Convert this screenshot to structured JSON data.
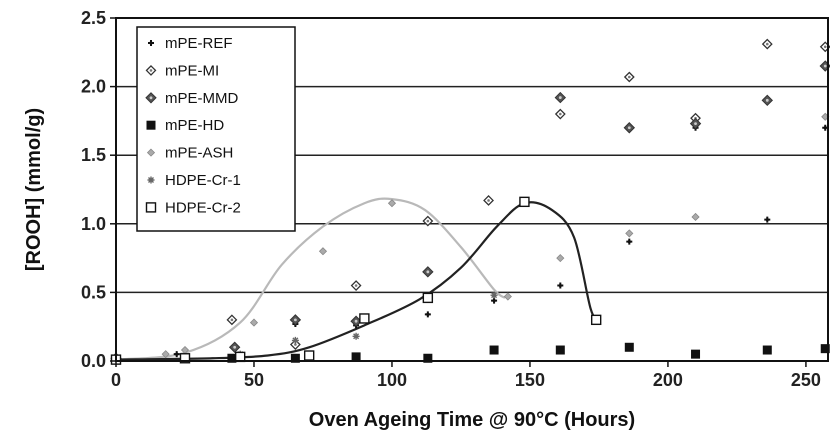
{
  "chart_data": {
    "type": "scatter",
    "title": "",
    "xlabel": "Oven Ageing Time @ 90°C (Hours)",
    "ylabel": "[ROOH] (mmol/g)",
    "xlim": [
      0,
      258
    ],
    "ylim": [
      0,
      2.5
    ],
    "xticks": [
      0,
      50,
      100,
      150,
      200,
      250
    ],
    "yticks": [
      0.0,
      0.5,
      1.0,
      1.5,
      2.0,
      2.5
    ],
    "ytick_labels": [
      "0.0",
      "0.5",
      "1.0",
      "1.5",
      "2.0",
      "2.5"
    ],
    "grid": "horizontal",
    "legend_position": "top-left",
    "series": [
      {
        "name": "mPE-REF",
        "marker": "small-plus",
        "points": [
          [
            0,
            0.02
          ],
          [
            22,
            0.05
          ],
          [
            45,
            0.03
          ],
          [
            65,
            0.27
          ],
          [
            87,
            0.26
          ],
          [
            113,
            0.34
          ],
          [
            137,
            0.44
          ],
          [
            161,
            0.55
          ],
          [
            186,
            0.87
          ],
          [
            210,
            1.7
          ],
          [
            236,
            1.03
          ],
          [
            257,
            1.7
          ]
        ]
      },
      {
        "name": "mPE-MI",
        "marker": "open-diamond",
        "points": [
          [
            0,
            0.01
          ],
          [
            42,
            0.3
          ],
          [
            65,
            0.12
          ],
          [
            87,
            0.55
          ],
          [
            113,
            1.02
          ],
          [
            135,
            1.17
          ],
          [
            161,
            1.8
          ],
          [
            186,
            2.07
          ],
          [
            210,
            1.77
          ],
          [
            236,
            2.31
          ],
          [
            257,
            2.29
          ]
        ]
      },
      {
        "name": "mPE-MMD",
        "marker": "filled-diamond",
        "points": [
          [
            0,
            0.02
          ],
          [
            43,
            0.1
          ],
          [
            65,
            0.3
          ],
          [
            87,
            0.29
          ],
          [
            113,
            0.65
          ],
          [
            161,
            1.92
          ],
          [
            186,
            1.7
          ],
          [
            210,
            1.73
          ],
          [
            236,
            1.9
          ],
          [
            257,
            2.15
          ]
        ]
      },
      {
        "name": "mPE-HD",
        "marker": "filled-square",
        "points": [
          [
            42,
            0.02
          ],
          [
            65,
            0.02
          ],
          [
            87,
            0.03
          ],
          [
            113,
            0.02
          ],
          [
            137,
            0.08
          ],
          [
            161,
            0.08
          ],
          [
            186,
            0.1
          ],
          [
            210,
            0.05
          ],
          [
            236,
            0.08
          ],
          [
            257,
            0.09
          ]
        ]
      },
      {
        "name": "mPE-ASH",
        "marker": "small-diamond",
        "points": [
          [
            0,
            0.02
          ],
          [
            18,
            0.05
          ],
          [
            25,
            0.08
          ],
          [
            50,
            0.28
          ],
          [
            75,
            0.8
          ],
          [
            100,
            1.15
          ],
          [
            142,
            0.47
          ],
          [
            161,
            0.75
          ],
          [
            186,
            0.93
          ],
          [
            210,
            1.05
          ],
          [
            257,
            1.78
          ]
        ]
      },
      {
        "name": "HDPE-Cr-1",
        "marker": "asterisk",
        "points": [
          [
            0,
            0.01
          ],
          [
            25,
            0.02
          ],
          [
            45,
            0.05
          ],
          [
            65,
            0.15
          ],
          [
            87,
            0.18
          ],
          [
            113,
            0.45
          ],
          [
            137,
            0.48
          ]
        ]
      },
      {
        "name": "HDPE-Cr-2",
        "marker": "open-square",
        "points": [
          [
            0,
            0.01
          ],
          [
            25,
            0.02
          ],
          [
            45,
            0.03
          ],
          [
            70,
            0.04
          ],
          [
            90,
            0.31
          ],
          [
            113,
            0.46
          ],
          [
            148,
            1.16
          ],
          [
            174,
            0.3
          ]
        ]
      }
    ],
    "curves": [
      {
        "color": "#b9b9b9",
        "points": [
          [
            0,
            0.01
          ],
          [
            25,
            0.06
          ],
          [
            45,
            0.28
          ],
          [
            60,
            0.7
          ],
          [
            75,
            0.98
          ],
          [
            90,
            1.15
          ],
          [
            100,
            1.18
          ],
          [
            112,
            1.1
          ],
          [
            125,
            0.83
          ],
          [
            137,
            0.52
          ],
          [
            141,
            0.46
          ]
        ]
      },
      {
        "color": "#222222",
        "points": [
          [
            0,
            0.01
          ],
          [
            35,
            0.02
          ],
          [
            55,
            0.04
          ],
          [
            70,
            0.1
          ],
          [
            90,
            0.26
          ],
          [
            110,
            0.45
          ],
          [
            125,
            0.68
          ],
          [
            138,
            0.98
          ],
          [
            148,
            1.15
          ],
          [
            158,
            1.1
          ],
          [
            166,
            0.9
          ],
          [
            172,
            0.38
          ],
          [
            175,
            0.3
          ]
        ]
      }
    ]
  }
}
